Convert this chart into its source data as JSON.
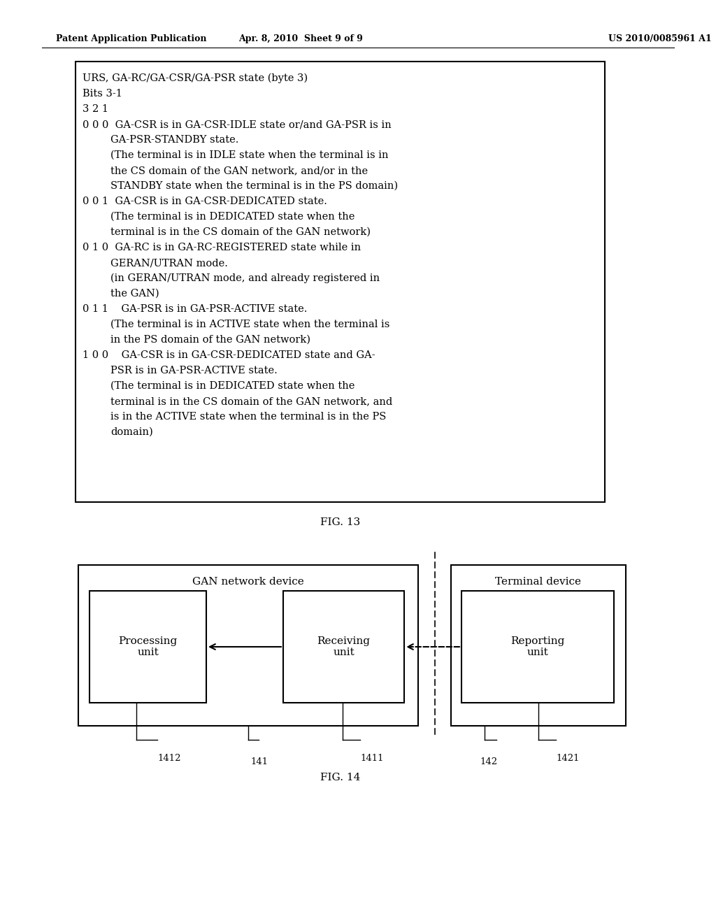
{
  "header_left": "Patent Application Publication",
  "header_mid": "Apr. 8, 2010  Sheet 9 of 9",
  "header_right": "US 2010/0085961 A1",
  "fig13_title": "FIG. 13",
  "fig14_title": "FIG. 14",
  "gan_label": "GAN network device",
  "terminal_label": "Terminal device",
  "proc_label": "Processing\nunit",
  "recv_label": "Receiving\nunit",
  "report_label": "Reporting\nunit",
  "label_1412": "1412",
  "label_141": "141",
  "label_1411": "1411",
  "label_142": "142",
  "label_1421": "1421",
  "bg_color": "#ffffff",
  "text_color": "#000000"
}
